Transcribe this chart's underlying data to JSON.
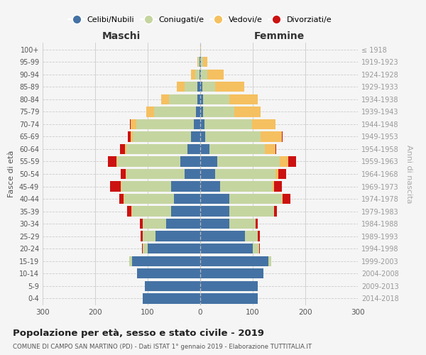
{
  "age_groups": [
    "0-4",
    "5-9",
    "10-14",
    "15-19",
    "20-24",
    "25-29",
    "30-34",
    "35-39",
    "40-44",
    "45-49",
    "50-54",
    "55-59",
    "60-64",
    "65-69",
    "70-74",
    "75-79",
    "80-84",
    "85-89",
    "90-94",
    "95-99",
    "100+"
  ],
  "birth_years": [
    "2014-2018",
    "2009-2013",
    "2004-2008",
    "1999-2003",
    "1994-1998",
    "1989-1993",
    "1984-1988",
    "1979-1983",
    "1974-1978",
    "1969-1973",
    "1964-1968",
    "1959-1963",
    "1954-1958",
    "1949-1953",
    "1944-1948",
    "1939-1943",
    "1934-1938",
    "1929-1933",
    "1924-1928",
    "1919-1923",
    "≤ 1918"
  ],
  "males": {
    "celibi": [
      110,
      105,
      120,
      130,
      100,
      85,
      65,
      55,
      50,
      55,
      30,
      38,
      25,
      18,
      12,
      8,
      5,
      5,
      2,
      1,
      0
    ],
    "coniugati": [
      0,
      0,
      0,
      5,
      10,
      25,
      45,
      75,
      95,
      95,
      110,
      120,
      115,
      110,
      110,
      80,
      55,
      25,
      8,
      3,
      0
    ],
    "vedovi": [
      0,
      0,
      0,
      0,
      0,
      0,
      0,
      1,
      1,
      1,
      2,
      2,
      3,
      5,
      10,
      15,
      15,
      15,
      8,
      2,
      0
    ],
    "divorziati": [
      0,
      0,
      0,
      0,
      1,
      3,
      5,
      8,
      8,
      20,
      10,
      15,
      10,
      5,
      2,
      0,
      0,
      0,
      0,
      0,
      0
    ]
  },
  "females": {
    "nubili": [
      110,
      110,
      120,
      130,
      100,
      85,
      55,
      55,
      55,
      38,
      28,
      32,
      18,
      10,
      8,
      5,
      5,
      4,
      2,
      1,
      0
    ],
    "coniugate": [
      0,
      0,
      0,
      5,
      12,
      25,
      50,
      85,
      100,
      100,
      115,
      120,
      105,
      105,
      90,
      60,
      50,
      25,
      12,
      5,
      0
    ],
    "vedove": [
      0,
      0,
      0,
      0,
      0,
      0,
      0,
      1,
      2,
      3,
      5,
      15,
      20,
      40,
      45,
      50,
      55,
      55,
      30,
      8,
      1
    ],
    "divorziate": [
      0,
      0,
      0,
      0,
      1,
      3,
      5,
      5,
      15,
      15,
      15,
      15,
      2,
      2,
      0,
      0,
      0,
      0,
      0,
      0,
      0
    ]
  },
  "colors": {
    "celibi": "#4472a4",
    "coniugati": "#c5d5a0",
    "vedovi": "#f5c060",
    "divorziati": "#cc1111"
  },
  "title": "Popolazione per età, sesso e stato civile - 2019",
  "subtitle": "COMUNE DI CAMPO SAN MARTINO (PD) - Dati ISTAT 1° gennaio 2019 - Elaborazione TUTTITALIA.IT",
  "xlabel_left": "Maschi",
  "xlabel_right": "Femmine",
  "ylabel_left": "Fasce di età",
  "ylabel_right": "Anni di nascita",
  "xlim": 300,
  "bg_color": "#f5f5f5",
  "grid_color": "#cccccc"
}
